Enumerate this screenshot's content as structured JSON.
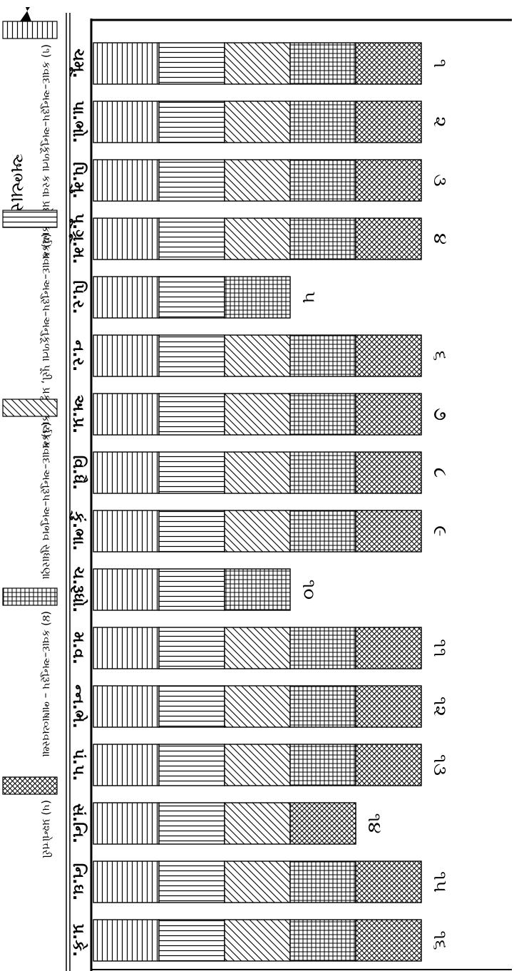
{
  "chart_data": {
    "type": "bar",
    "title": "",
    "categories": [
      "ચમૂ.",
      "પા.ભો.",
      "પિ.મુ.",
      "પૂ.ગ્રૂ.મ.",
      "પિ.ર.",
      "ન.ર.",
      "અ.પ્ર.",
      "વિ.ધૈ.",
      "કું.ભા.",
      "ચ.રૂધો.",
      "મ.વ.",
      "ન્ન.ભે.",
      "પં.પ.",
      "સં.નિ.",
      "નિ.ઘ.",
      "પ્ર.કે."
    ],
    "bar_numbers": [
      "૧",
      "૨",
      "૩",
      "૪",
      "૫",
      "૬",
      "૭",
      "૮",
      "૯",
      "૧૦",
      "૧૧",
      "૧૨",
      "૧૩",
      "૧૪",
      "૧૫",
      "૧૬"
    ],
    "series": [
      {
        "name": "(૧) કવાદ–અનુરૂપ–અનુકૂળતા કરવા પ્રદેશ કાર્યક્રમ",
        "pattern": "horizontal",
        "values": [
          1,
          1,
          1,
          1,
          1,
          1,
          1,
          1,
          1,
          1,
          1,
          1,
          1,
          1,
          1,
          1
        ]
      },
      {
        "name": "(૨) કવાદ–અનુરૂપ–અનુકૂળતા પૂરી, પ્રકૃતિ કાર્યક્રમ",
        "pattern": "vertical",
        "values": [
          1,
          1,
          1,
          1,
          1,
          1,
          1,
          1,
          1,
          1,
          1,
          1,
          1,
          1,
          1,
          1
        ]
      },
      {
        "name": "(૩) કવાદ–અનુરૂપ–અનુભવ સુધારણા",
        "pattern": "diagonal",
        "values": [
          1,
          1,
          1,
          1,
          0,
          1,
          1,
          1,
          1,
          0,
          1,
          1,
          1,
          1,
          1,
          1
        ]
      },
      {
        "name": "(૪) કવાદ–અનુરૂપ – ભાષાવ્યવસ્થા",
        "pattern": "grid",
        "values": [
          1,
          1,
          1,
          1,
          1,
          1,
          1,
          1,
          1,
          1,
          1,
          1,
          1,
          0,
          1,
          1
        ]
      },
      {
        "name": "(૫) પ્રશ્નોત્તરી",
        "pattern": "crosshatch",
        "values": [
          1,
          1,
          1,
          1,
          0,
          1,
          1,
          1,
          1,
          0,
          1,
          1,
          1,
          1,
          1,
          1
        ]
      }
    ],
    "ylabel": "અભ્યાસ",
    "legend_position": "bottom",
    "grid": false
  },
  "colors": {
    "ink": "#000000",
    "background": "#ffffff"
  }
}
